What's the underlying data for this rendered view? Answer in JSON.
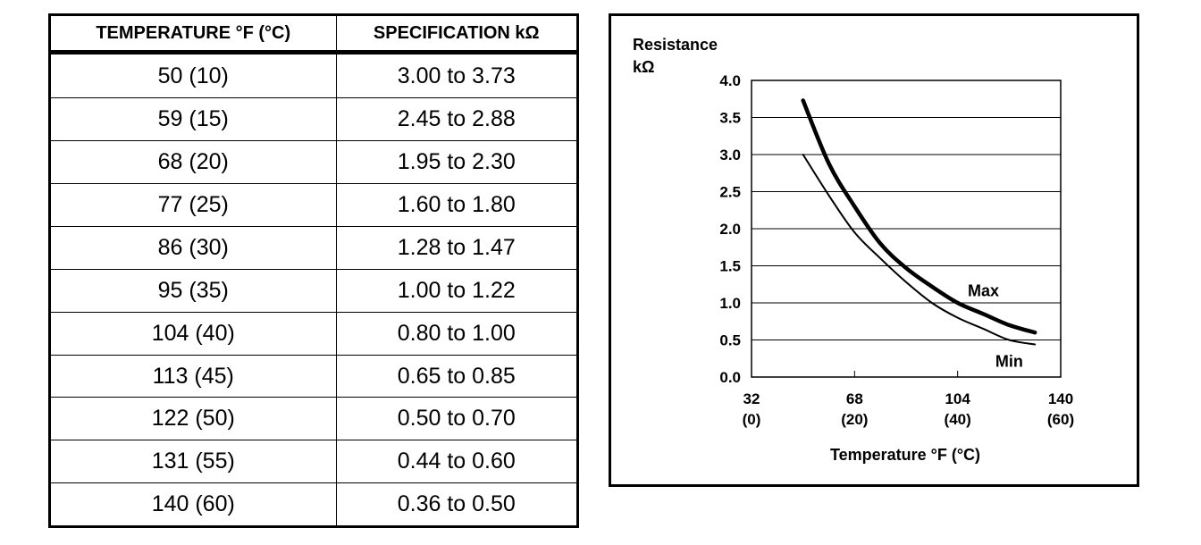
{
  "table": {
    "headers": [
      "TEMPERATURE °F (°C)",
      "SPECIFICATION kΩ"
    ],
    "rows": [
      [
        "50 (10)",
        "3.00 to 3.73"
      ],
      [
        "59 (15)",
        "2.45 to 2.88"
      ],
      [
        "68 (20)",
        "1.95 to 2.30"
      ],
      [
        "77 (25)",
        "1.60 to 1.80"
      ],
      [
        "86 (30)",
        "1.28 to 1.47"
      ],
      [
        "95 (35)",
        "1.00 to 1.22"
      ],
      [
        "104 (40)",
        "0.80 to 1.00"
      ],
      [
        "113 (45)",
        "0.65 to 0.85"
      ],
      [
        "122 (50)",
        "0.50 to 0.70"
      ],
      [
        "131 (55)",
        "0.44 to 0.60"
      ],
      [
        "140 (60)",
        "0.36 to 0.50"
      ]
    ]
  },
  "chart_data": {
    "type": "line",
    "ylabel_line1": "Resistance",
    "ylabel_line2": "kΩ",
    "xlabel": "Temperature °F (°C)",
    "xlim": [
      32,
      140
    ],
    "ylim": [
      0,
      4.0
    ],
    "yticks": [
      "4.0",
      "3.5",
      "3.0",
      "2.5",
      "2.0",
      "1.5",
      "1.0",
      "0.5",
      "0.0"
    ],
    "xticks": [
      {
        "value": 32,
        "line1": "32",
        "line2": "(0)"
      },
      {
        "value": 68,
        "line1": "68",
        "line2": "(20)"
      },
      {
        "value": 104,
        "line1": "104",
        "line2": "(40)"
      },
      {
        "value": 140,
        "line1": "140",
        "line2": "(60)"
      }
    ],
    "grid": "horizontal",
    "series": [
      {
        "name": "Max",
        "x": [
          50,
          59,
          68,
          77,
          86,
          95,
          104,
          113,
          122,
          131
        ],
        "y": [
          3.73,
          2.88,
          2.3,
          1.8,
          1.47,
          1.22,
          1.0,
          0.85,
          0.7,
          0.6
        ]
      },
      {
        "name": "Min",
        "x": [
          50,
          59,
          68,
          77,
          86,
          95,
          104,
          113,
          122,
          131
        ],
        "y": [
          3.0,
          2.45,
          1.95,
          1.6,
          1.28,
          1.0,
          0.8,
          0.65,
          0.5,
          0.44
        ]
      }
    ]
  }
}
